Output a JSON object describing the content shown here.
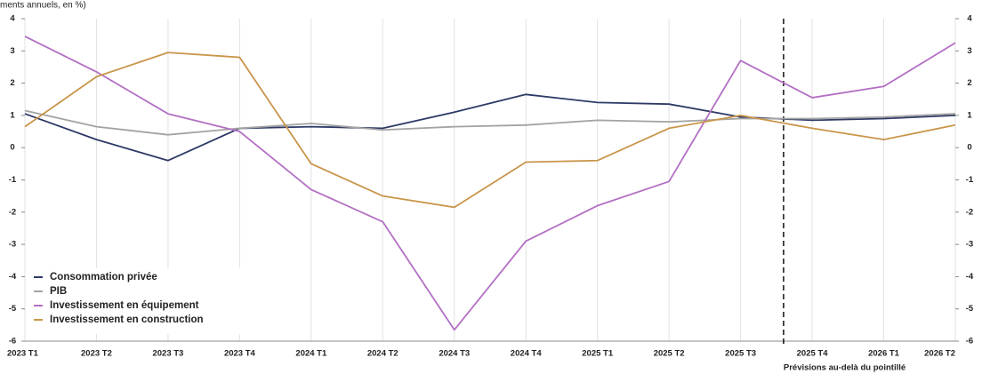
{
  "chart_data": {
    "type": "line",
    "subtitle": "ments annuels, en %)",
    "categories": [
      "2023 T1",
      "2023 T2",
      "2023 T3",
      "2023 T4",
      "2024 T1",
      "2024 T2",
      "2024 T3",
      "2024 T4",
      "2025 T1",
      "2025 T2",
      "2025 T3",
      "2025 T4",
      "2026 T1",
      "2026 T2"
    ],
    "series": [
      {
        "name": "Consommation privée",
        "color": "#2e3a66",
        "values": [
          1.05,
          0.25,
          -0.4,
          0.6,
          0.65,
          0.6,
          1.1,
          1.65,
          1.4,
          1.35,
          0.95,
          0.85,
          0.9,
          1.0
        ]
      },
      {
        "name": "PIB",
        "color": "#a3a3a3",
        "values": [
          1.15,
          0.65,
          0.4,
          0.6,
          0.75,
          0.55,
          0.65,
          0.7,
          0.85,
          0.8,
          0.9,
          0.9,
          0.95,
          1.05
        ]
      },
      {
        "name": "Investissement en équipement",
        "color": "#b36fc4",
        "values": [
          3.45,
          2.35,
          1.05,
          0.5,
          -1.3,
          -2.3,
          -5.65,
          -2.9,
          -1.8,
          -1.05,
          2.7,
          1.55,
          1.9,
          3.25
        ]
      },
      {
        "name": "Investissement en construction",
        "color": "#c9954a",
        "values": [
          0.65,
          2.2,
          2.95,
          2.8,
          -0.5,
          -1.5,
          -1.85,
          -0.45,
          -0.4,
          0.6,
          1.0,
          0.6,
          0.25,
          0.7
        ]
      }
    ],
    "ylim": [
      -6,
      4
    ],
    "yticks": [
      -6,
      -5,
      -4,
      -3,
      -2,
      -1,
      0,
      1,
      2,
      3,
      4
    ],
    "forecast_line": 10.6,
    "annotation": "Prévisions au-delà du pointillé",
    "legend": "lower left"
  }
}
